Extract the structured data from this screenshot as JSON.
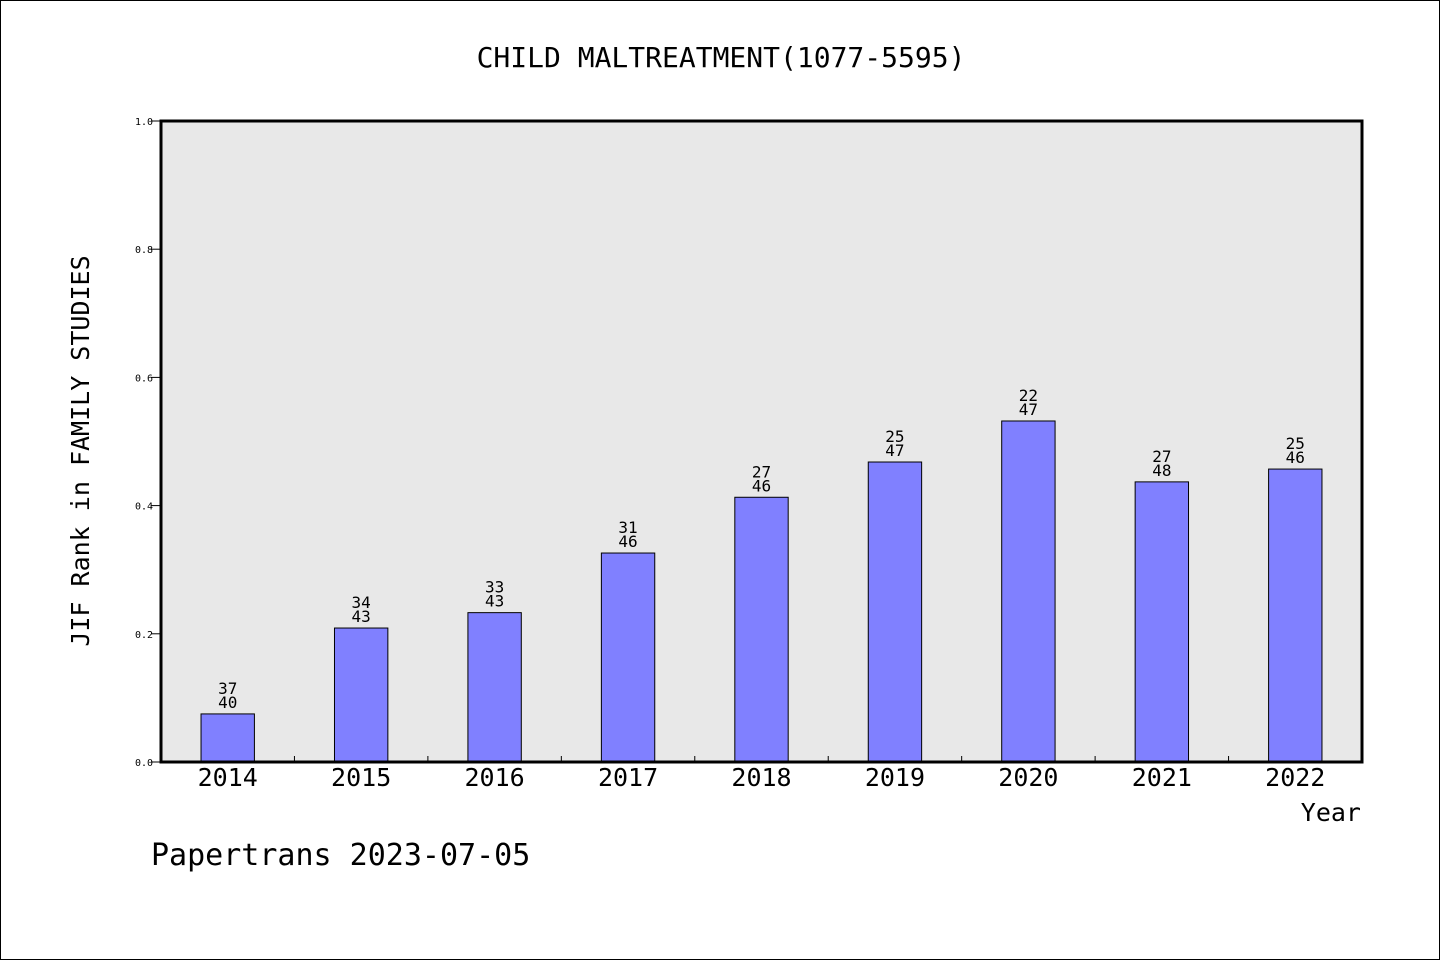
{
  "chart_data": {
    "type": "bar",
    "title": "CHILD MALTREATMENT(1077-5595)",
    "xlabel": "Year",
    "ylabel": "JIF Rank in FAMILY STUDIES",
    "categories": [
      "2014",
      "2015",
      "2016",
      "2017",
      "2018",
      "2019",
      "2020",
      "2021",
      "2022"
    ],
    "values": [
      0.075,
      0.209,
      0.233,
      0.326,
      0.413,
      0.468,
      0.532,
      0.437,
      0.457
    ],
    "bar_labels": [
      {
        "rank": "37",
        "total": "40"
      },
      {
        "rank": "34",
        "total": "43"
      },
      {
        "rank": "33",
        "total": "43"
      },
      {
        "rank": "31",
        "total": "46"
      },
      {
        "rank": "27",
        "total": "46"
      },
      {
        "rank": "25",
        "total": "47"
      },
      {
        "rank": "22",
        "total": "47"
      },
      {
        "rank": "27",
        "total": "48"
      },
      {
        "rank": "25",
        "total": "46"
      }
    ],
    "ylim": [
      0.0,
      1.0
    ],
    "yticks": [
      "0.0",
      "0.2",
      "0.4",
      "0.6",
      "0.8",
      "1.0"
    ],
    "grid": false,
    "legend": "none",
    "colors": {
      "bar": "#8080ff",
      "plot_background": "#e8e8e8"
    }
  },
  "footer": {
    "text": "Papertrans 2023-07-05"
  }
}
